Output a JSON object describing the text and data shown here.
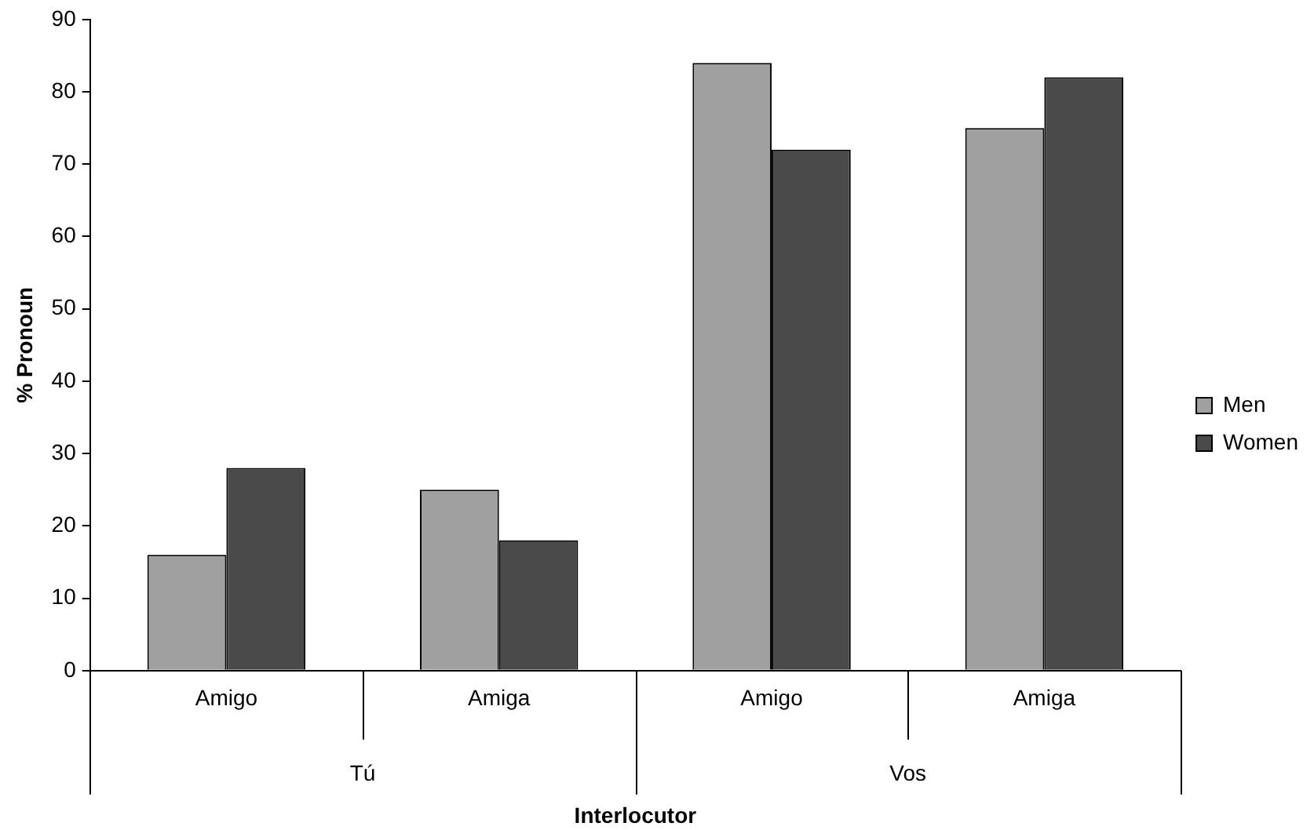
{
  "chart_data": {
    "type": "bar",
    "xlabel": "Interlocutor",
    "ylabel": "% Pronoun",
    "categories": [
      "Amigo",
      "Amiga",
      "Amigo",
      "Amiga"
    ],
    "series": [
      {
        "name": "Men",
        "color": "#a0a0a0",
        "values": [
          16,
          25,
          84,
          75
        ]
      },
      {
        "name": "Women",
        "color": "#4a4a4a",
        "values": [
          28,
          18,
          72,
          82
        ]
      }
    ],
    "annotations": [
      "Tú",
      "Vos"
    ],
    "ylim": [
      0,
      90
    ],
    "yticks": [
      0,
      10,
      20,
      30,
      40,
      50,
      60,
      70,
      80,
      90
    ],
    "grid": false,
    "legend": "right"
  }
}
